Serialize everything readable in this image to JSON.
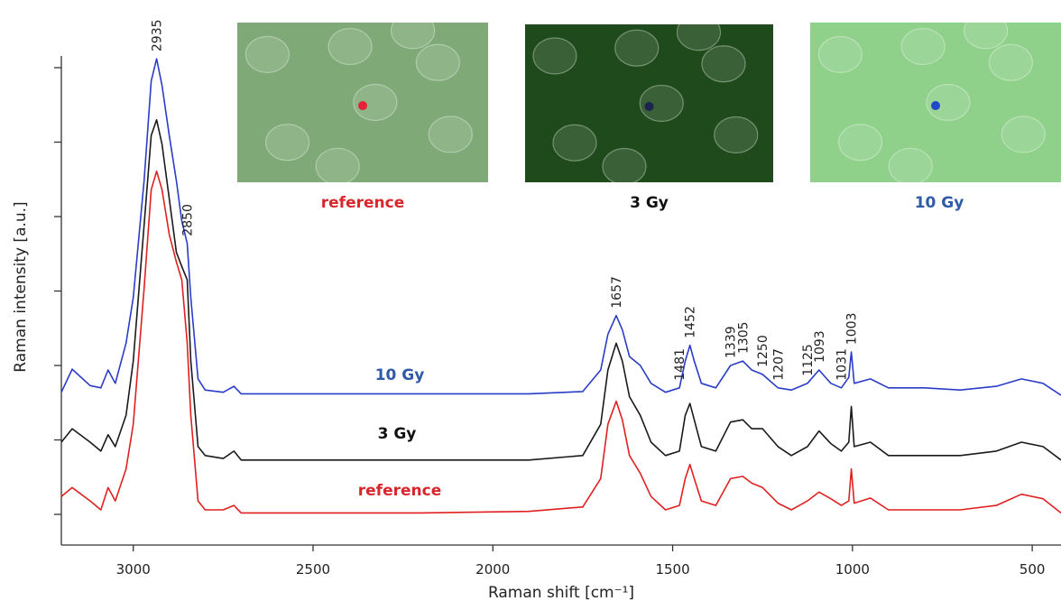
{
  "chart_data": {
    "type": "line",
    "xlabel": "Raman shift [cm⁻¹]",
    "ylabel": "Raman intensity [a.u.]",
    "xlim": [
      3200,
      420
    ],
    "ylim": [
      -0.4,
      6.2
    ],
    "xticks": [
      3000,
      2500,
      2000,
      1500,
      1000,
      500
    ],
    "yticks": [
      0,
      1,
      2,
      3,
      4,
      5,
      6
    ],
    "x": [
      3200,
      3170,
      3120,
      3090,
      3070,
      3050,
      3020,
      3000,
      2970,
      2950,
      2935,
      2920,
      2900,
      2880,
      2865,
      2850,
      2840,
      2820,
      2800,
      2750,
      2720,
      2700,
      2500,
      2200,
      1900,
      1750,
      1700,
      1680,
      1657,
      1640,
      1620,
      1590,
      1560,
      1520,
      1481,
      1465,
      1452,
      1440,
      1420,
      1380,
      1339,
      1305,
      1280,
      1250,
      1207,
      1170,
      1125,
      1093,
      1060,
      1031,
      1010,
      1003,
      995,
      950,
      900,
      800,
      700,
      600,
      530,
      470,
      420
    ],
    "series": [
      {
        "name": "reference",
        "color": "#e02020",
        "label_color": "#d9262c",
        "values": [
          0.24,
          0.36,
          0.18,
          0.06,
          0.36,
          0.18,
          0.61,
          1.21,
          3.03,
          4.36,
          4.61,
          4.36,
          3.76,
          3.39,
          3.15,
          2.3,
          1.33,
          0.18,
          0.06,
          0.06,
          0.12,
          0.02,
          0.02,
          0.02,
          0.04,
          0.1,
          0.48,
          1.21,
          1.52,
          1.27,
          0.79,
          0.55,
          0.24,
          0.06,
          0.12,
          0.48,
          0.67,
          0.48,
          0.18,
          0.12,
          0.48,
          0.51,
          0.42,
          0.36,
          0.15,
          0.06,
          0.18,
          0.3,
          0.21,
          0.12,
          0.18,
          0.61,
          0.15,
          0.22,
          0.06,
          0.06,
          0.06,
          0.12,
          0.27,
          0.21,
          0.02
        ]
      },
      {
        "name": "3 Gy",
        "color": "#1a1a1a",
        "label_color": "#111111",
        "values": [
          0.97,
          1.15,
          0.97,
          0.85,
          1.07,
          0.91,
          1.33,
          2.06,
          3.88,
          5.09,
          5.3,
          4.97,
          4.24,
          3.52,
          3.33,
          3.15,
          2.06,
          0.91,
          0.79,
          0.75,
          0.85,
          0.73,
          0.73,
          0.73,
          0.73,
          0.79,
          1.21,
          1.94,
          2.3,
          2.06,
          1.58,
          1.33,
          0.97,
          0.79,
          0.85,
          1.33,
          1.49,
          1.27,
          0.91,
          0.85,
          1.24,
          1.27,
          1.15,
          1.15,
          0.91,
          0.79,
          0.91,
          1.12,
          0.95,
          0.85,
          0.97,
          1.45,
          0.91,
          0.97,
          0.79,
          0.79,
          0.79,
          0.85,
          0.97,
          0.91,
          0.73
        ]
      },
      {
        "name": "10 Gy",
        "color": "#2a3cc8",
        "label_color": "#2e5aa8",
        "values": [
          1.64,
          1.95,
          1.73,
          1.7,
          1.94,
          1.76,
          2.3,
          2.91,
          4.48,
          5.82,
          6.12,
          5.76,
          5.09,
          4.48,
          3.94,
          3.64,
          2.91,
          1.82,
          1.67,
          1.64,
          1.72,
          1.62,
          1.62,
          1.62,
          1.62,
          1.65,
          1.94,
          2.42,
          2.67,
          2.48,
          2.12,
          2.0,
          1.76,
          1.64,
          1.7,
          2.06,
          2.27,
          2.06,
          1.76,
          1.7,
          2.0,
          2.06,
          1.94,
          1.88,
          1.7,
          1.67,
          1.76,
          1.94,
          1.76,
          1.7,
          1.84,
          2.18,
          1.76,
          1.82,
          1.7,
          1.7,
          1.67,
          1.72,
          1.82,
          1.76,
          1.6
        ]
      }
    ],
    "peak_labels": [
      2935,
      2850,
      1657,
      1481,
      1452,
      1339,
      1305,
      1250,
      1207,
      1125,
      1093,
      1031,
      1003
    ],
    "insets": [
      {
        "caption": "reference",
        "color": "#d9262c",
        "dot_color": "#e8203a",
        "tone": "#7faa78"
      },
      {
        "caption": "3 Gy",
        "color": "#111111",
        "dot_color": "#1c2550",
        "tone": "#1f4a1c"
      },
      {
        "caption": "10 Gy",
        "color": "#2e5aa8",
        "dot_color": "#2048c8",
        "tone": "#8fd08a"
      }
    ]
  }
}
